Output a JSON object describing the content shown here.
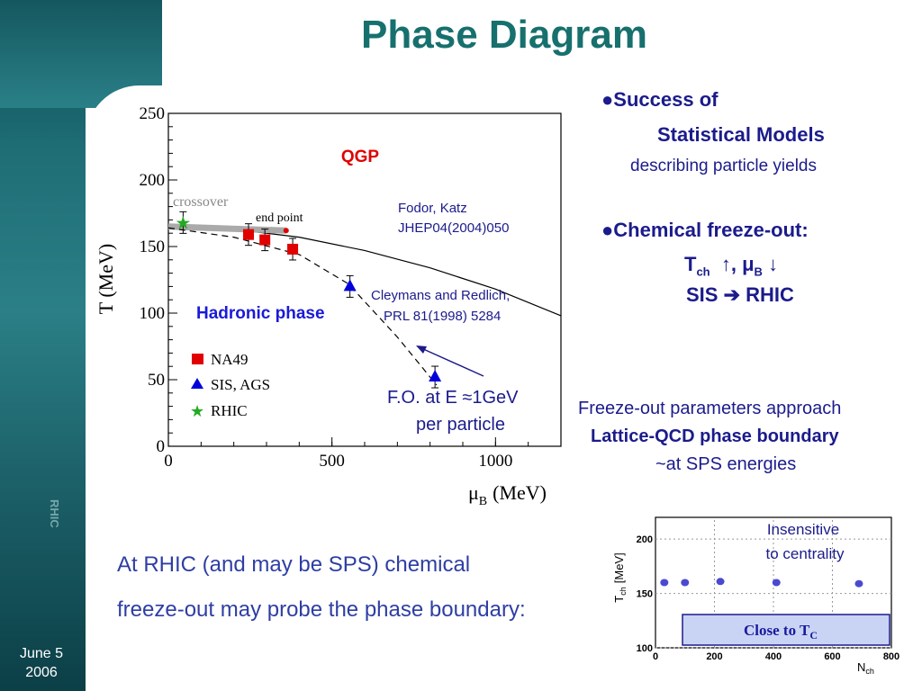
{
  "slide": {
    "title": "Phase Diagram",
    "date_line1": "June 5",
    "date_line2": "2006",
    "side_logo": "RHIC"
  },
  "bullets": {
    "b1_head": "●Success of",
    "b1_sub": "Statistical Models",
    "b1_desc": "describing particle yields",
    "b2_head": "●Chemical freeze-out:",
    "b2_t": "T",
    "b2_t_sub": "ch",
    "b2_arrows": "↑,    μ",
    "b2_mu_sub": "B",
    "b2_down": "↓",
    "b2_sis": "SIS ➔ RHIC"
  },
  "freeze_out": {
    "line1": "Freeze-out parameters approach",
    "line2": "Lattice-QCD phase boundary",
    "line3": "~at SPS energies"
  },
  "bottom": {
    "line1": "At RHIC (and may be SPS) chemical",
    "line2": "freeze-out may probe the phase boundary:"
  },
  "main_plot": {
    "ylabel": "T (MeV)",
    "xlabel_mu": "μ",
    "xlabel_sub": "B",
    "xlabel_unit": "(MeV)",
    "qgp": "QGP",
    "hadronic": "Hadronic phase",
    "crossover": "crossover",
    "end_point": "end point",
    "fodor1": "Fodor, Katz",
    "fodor2": "JHEP04(2004)050",
    "cley1": "Cleymans and Redlich,",
    "cley2": "PRL 81(1998) 5284",
    "fo1": "F.O. at E ≈1GeV",
    "fo2": "per particle",
    "legend_na49": "NA49",
    "legend_sis": "SIS, AGS",
    "legend_rhic": "RHIC",
    "yticks": [
      "0",
      "50",
      "100",
      "150",
      "200",
      "250"
    ],
    "xticks": [
      "0",
      "500",
      "1000"
    ]
  },
  "inset": {
    "ylabel_t": "T",
    "ylabel_sub": "ch",
    "ylabel_unit": "[MeV]",
    "xlabel_n": "N",
    "xlabel_sub": "ch",
    "note1": "Insensitive",
    "note2": "to centrality",
    "box_text": "Close to T",
    "box_sub": "C",
    "yticks": [
      "100",
      "150",
      "200"
    ],
    "xticks": [
      "0",
      "200",
      "400",
      "600",
      "800"
    ]
  },
  "colors": {
    "title": "#16706e",
    "text_blue": "#1b1b8c",
    "qgp_red": "#e00000",
    "hadronic_blue": "#1a1ad8",
    "na49_red": "#e00000",
    "sis_blue": "#0000dd",
    "rhic_green": "#22aa22",
    "inset_box": "#c9d4f5"
  },
  "chart_data": [
    {
      "type": "scatter",
      "title": "",
      "xlabel": "μB (MeV)",
      "ylabel": "T (MeV)",
      "xlim": [
        0,
        1200
      ],
      "ylim": [
        0,
        250
      ],
      "xticks": [
        0,
        500,
        1000
      ],
      "yticks": [
        0,
        50,
        100,
        150,
        200,
        250
      ],
      "series": [
        {
          "name": "NA49",
          "marker": "square",
          "color": "#e00000",
          "x": [
            245,
            295,
            380
          ],
          "y": [
            159,
            155,
            148
          ]
        },
        {
          "name": "SIS, AGS",
          "marker": "triangle",
          "color": "#0000dd",
          "x": [
            555,
            815
          ],
          "y": [
            120,
            52
          ]
        },
        {
          "name": "RHIC",
          "marker": "star",
          "color": "#22aa22",
          "x": [
            45
          ],
          "y": [
            168
          ]
        }
      ],
      "curves": [
        {
          "name": "Fodor, Katz JHEP04(2004)050",
          "style": "solid",
          "x": [
            0,
            200,
            400,
            600,
            800,
            1000,
            1200
          ],
          "y": [
            165,
            163,
            157,
            147,
            134,
            118,
            98
          ]
        },
        {
          "name": "crossover",
          "style": "thick-gray",
          "x": [
            0,
            360
          ],
          "y": [
            165,
            162
          ]
        },
        {
          "name": "Cleymans and Redlich, PRL 81(1998) 5284",
          "style": "dashed",
          "x": [
            0,
            200,
            400,
            550,
            700,
            820
          ],
          "y": [
            164,
            157,
            144,
            122,
            82,
            46
          ]
        }
      ]
    },
    {
      "type": "scatter",
      "title": "",
      "xlabel": "Nch",
      "ylabel": "Tch [MeV]",
      "xlim": [
        0,
        800
      ],
      "ylim": [
        100,
        220
      ],
      "xticks": [
        0,
        200,
        400,
        600,
        800
      ],
      "yticks": [
        100,
        150,
        200
      ],
      "series": [
        {
          "name": "",
          "x": [
            30,
            100,
            220,
            410,
            690
          ],
          "y": [
            160,
            160,
            161,
            160,
            159
          ]
        }
      ]
    }
  ]
}
